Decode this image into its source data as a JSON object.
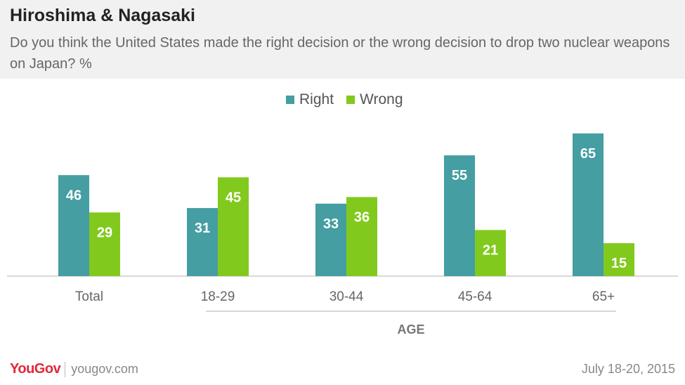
{
  "header": {
    "title": "Hiroshima & Nagasaki",
    "subtitle": "Do you think the United States made the right decision or the wrong decision to drop two nuclear weapons on Japan? %"
  },
  "colors": {
    "right": "#449ea2",
    "wrong": "#82c91e",
    "header_bg": "#f1f1f1"
  },
  "chart_data": {
    "type": "bar",
    "categories": [
      "Total",
      "18-29",
      "30-44",
      "45-64",
      "65+"
    ],
    "series": [
      {
        "name": "Right",
        "values": [
          46,
          31,
          33,
          55,
          65
        ]
      },
      {
        "name": "Wrong",
        "values": [
          29,
          45,
          36,
          21,
          15
        ]
      }
    ],
    "group_label": "AGE",
    "ylim": [
      0,
      70
    ]
  },
  "footer": {
    "logo": "YouGov",
    "site": "yougov.com",
    "date": "July 18-20, 2015"
  }
}
